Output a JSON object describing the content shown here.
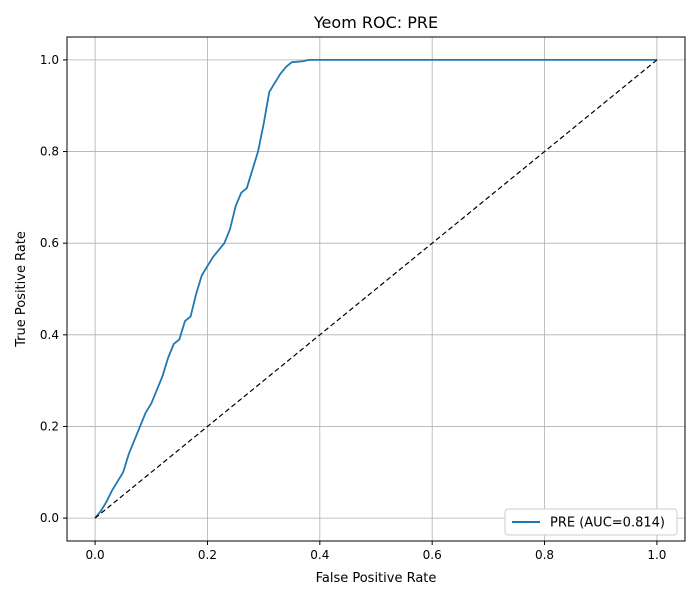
{
  "chart_data": {
    "type": "line",
    "title": "Yeom ROC: PRE",
    "xlabel": "False Positive Rate",
    "ylabel": "True Positive Rate",
    "xlim": [
      -0.05,
      1.05
    ],
    "ylim": [
      -0.05,
      1.05
    ],
    "xticks": [
      "0.0",
      "0.2",
      "0.4",
      "0.6",
      "0.8",
      "1.0"
    ],
    "yticks": [
      "0.0",
      "0.2",
      "0.4",
      "0.6",
      "0.8",
      "1.0"
    ],
    "xtick_values": [
      0.0,
      0.2,
      0.4,
      0.6,
      0.8,
      1.0
    ],
    "ytick_values": [
      0.0,
      0.2,
      0.4,
      0.6,
      0.8,
      1.0
    ],
    "grid": true,
    "legend_position": "lower-right",
    "series": [
      {
        "name": "PRE (AUC=0.814)",
        "color": "#1f77b4",
        "x": [
          0.0,
          0.01,
          0.02,
          0.03,
          0.04,
          0.05,
          0.06,
          0.07,
          0.08,
          0.09,
          0.1,
          0.11,
          0.12,
          0.13,
          0.14,
          0.15,
          0.16,
          0.17,
          0.18,
          0.19,
          0.2,
          0.21,
          0.22,
          0.23,
          0.24,
          0.25,
          0.26,
          0.27,
          0.28,
          0.29,
          0.3,
          0.31,
          0.32,
          0.33,
          0.34,
          0.35,
          0.37,
          0.38,
          0.4,
          0.6,
          0.8,
          1.0
        ],
        "y": [
          0.0,
          0.015,
          0.035,
          0.06,
          0.08,
          0.1,
          0.14,
          0.17,
          0.2,
          0.23,
          0.25,
          0.28,
          0.31,
          0.35,
          0.38,
          0.39,
          0.43,
          0.44,
          0.49,
          0.53,
          0.55,
          0.57,
          0.585,
          0.6,
          0.63,
          0.68,
          0.71,
          0.72,
          0.76,
          0.8,
          0.86,
          0.93,
          0.95,
          0.97,
          0.985,
          0.995,
          0.997,
          1.0,
          1.0,
          1.0,
          1.0,
          1.0
        ]
      },
      {
        "name": "",
        "color": "#000000",
        "dashed": true,
        "x": [
          0.0,
          1.0
        ],
        "y": [
          0.0,
          1.0
        ]
      }
    ]
  }
}
